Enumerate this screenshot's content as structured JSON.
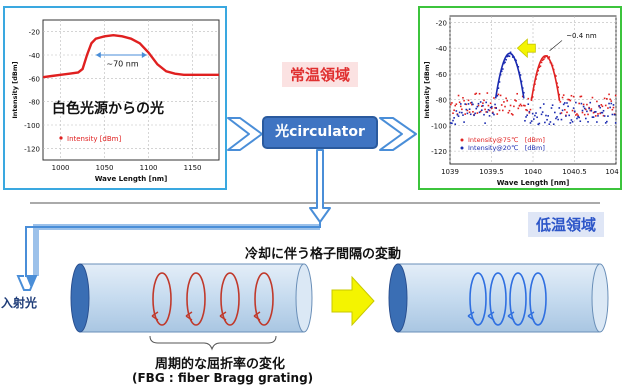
{
  "warm_region_label": "常温領域",
  "cold_region_label": "低温領域",
  "circulator_label": "光circulator",
  "cooling_label": "冷却に伴う格子間隔の変動",
  "source_label": "白色光源からの光",
  "incident_label": "入射光",
  "grating_label": "周期的な屈折率の変化",
  "fbg_label": "(FBG : fiber Bragg grating)",
  "colors": {
    "panel_left_border": "#3aa8e0",
    "panel_right_border": "#3cc43c",
    "arrow_blue": "#4a8ed8",
    "circulator_fill": "#3f74c2",
    "warm_red": "#e03030",
    "cold_blue": "#2c55c8",
    "fiber_fill": "#c8dcf0",
    "coil_red": "#c0392b",
    "coil_blue": "#2f6fe0",
    "shift_arrow": "#f4f400"
  },
  "chart_data": [
    {
      "type": "line",
      "xlabel": "Wave Length [nm]",
      "ylabel": "Intensity [dBm]",
      "xlim": [
        980,
        1180
      ],
      "ylim": [
        -130,
        -10
      ],
      "xticks": [
        "1000",
        "1050",
        "1100",
        "1150"
      ],
      "yticks": [
        "-20",
        "-40",
        "-60",
        "-80",
        "-100",
        "-120"
      ],
      "legend": [
        "Intensity [dBm]"
      ],
      "legend_position": "bottom-left",
      "annotation": "~70 nm",
      "series": [
        {
          "name": "Intensity [dBm]",
          "color": "#e02020",
          "x": [
            980,
            990,
            1000,
            1010,
            1020,
            1025,
            1030,
            1035,
            1040,
            1045,
            1050,
            1060,
            1070,
            1080,
            1090,
            1100,
            1110,
            1120,
            1130,
            1140,
            1150,
            1160,
            1170,
            1180
          ],
          "y": [
            -59,
            -58,
            -57,
            -56,
            -55,
            -52,
            -40,
            -30,
            -26,
            -25,
            -24,
            -23,
            -24,
            -26,
            -30,
            -38,
            -48,
            -54,
            -56,
            -57,
            -57,
            -57,
            -57,
            -57
          ]
        }
      ]
    },
    {
      "type": "scatter",
      "xlabel": "Wave Length [nm]",
      "ylabel": "Intensity [dBm]",
      "xlim": [
        1039,
        1041
      ],
      "ylim": [
        -130,
        -15
      ],
      "xticks": [
        "1039",
        "1039.5",
        "1040",
        "1040.5",
        "104"
      ],
      "yticks": [
        "-20",
        "-40",
        "-60",
        "-80",
        "-100",
        "-120"
      ],
      "annotation": "~0.4 nm",
      "legend": [
        "Intensity@75℃　[dBm]",
        "Intensity@20℃　[dBm]"
      ],
      "legend_position": "bottom-left",
      "series": [
        {
          "name": "Intensity@75℃　[dBm]",
          "color": "#e02020",
          "peak_x": 1040.15,
          "peak_y": -46,
          "noise_level": -83
        },
        {
          "name": "Intensity@20℃　[dBm]",
          "color": "#1a2ab0",
          "peak_x": 1039.72,
          "peak_y": -44,
          "noise_level": -90
        }
      ]
    }
  ]
}
